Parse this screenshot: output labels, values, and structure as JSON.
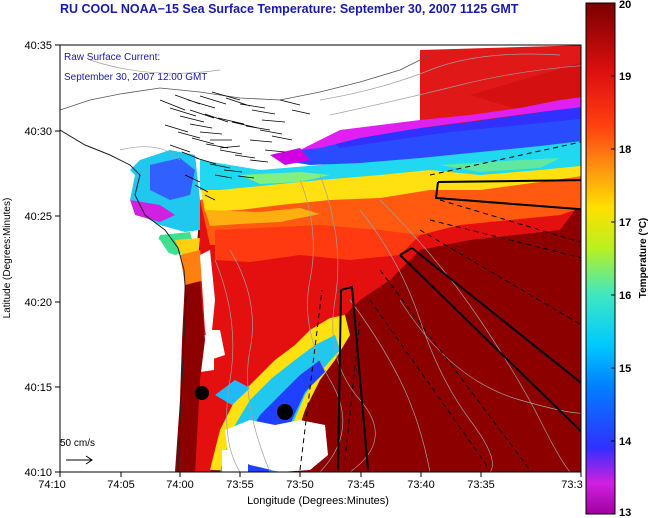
{
  "title": "RU COOL  NOAA−15  Sea Surface Temperature:  September 30, 2007 1125 GMT",
  "current_label_line1": "Raw Surface Current:",
  "current_label_line2": "September 30, 2007 12:00 GMT",
  "scale_vector_label": "50 cm/s",
  "x_axis_label": "Longitude (Degrees:Minutes)",
  "y_axis_label": "Latitude (Degrees:Minutes)",
  "x_ticks": [
    "74:10",
    "74:05",
    "74:00",
    "73:55",
    "73:50",
    "73:45",
    "73:40",
    "73:35",
    "73:3"
  ],
  "y_ticks": [
    "40:35",
    "40:30",
    "40:25",
    "40:20",
    "40:15",
    "40:10"
  ],
  "colorbar": {
    "label": "Temperature (°C)",
    "ticks": [
      "20",
      "19",
      "18",
      "17",
      "16",
      "15",
      "14",
      "13"
    ],
    "min": 13,
    "max": 20,
    "colors": [
      "#ff00ff",
      "#2040ff",
      "#10d0ff",
      "#f0f000",
      "#ff6010",
      "#e01010",
      "#8c0000"
    ]
  }
}
